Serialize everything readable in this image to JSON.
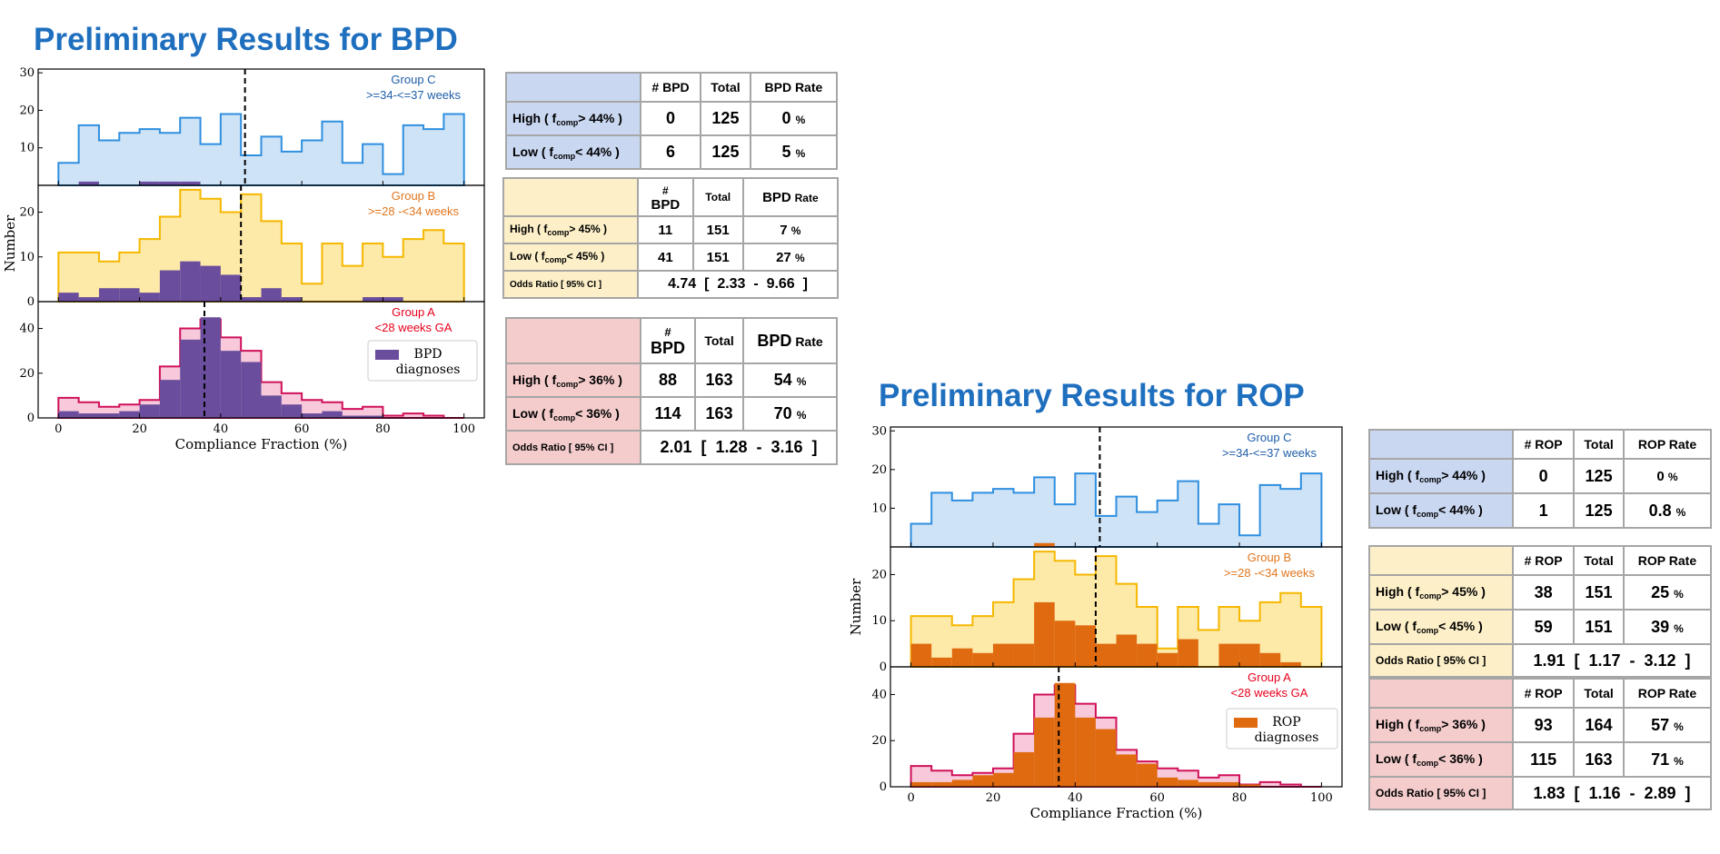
{
  "colors": {
    "title": "#1f6fbf",
    "groupC": {
      "line": "#2f8fdf",
      "fill": "#cfe3f7",
      "text": "#1f5ea8"
    },
    "groupB": {
      "line": "#f5b800",
      "fill": "#fde9a8",
      "text": "#e2761e"
    },
    "groupA": {
      "line": "#d0105a",
      "fill": "#f7c9da",
      "text": "#e8001c"
    },
    "bpd": "#6a4d9c",
    "rop": "#e06a10"
  },
  "bpd": {
    "title": "Preliminary Results for BPD",
    "chart_data": {
      "type": "histogram",
      "xlabel": "Compliance Fraction (%)",
      "ylabel": "Number",
      "xlim": [
        -5,
        105
      ],
      "xticks": [
        0,
        20,
        40,
        60,
        80,
        100
      ],
      "bin_width": 5,
      "bins_start": [
        0,
        5,
        10,
        15,
        20,
        25,
        30,
        35,
        40,
        45,
        50,
        55,
        60,
        65,
        70,
        75,
        80,
        85,
        90,
        95
      ],
      "panels": [
        {
          "group": "Group C",
          "sub": ">=34-<=37 weeks",
          "ylim": [
            0,
            31
          ],
          "yticks": [
            10,
            20,
            30
          ],
          "dashed_x": 46,
          "totals": [
            6,
            16,
            12,
            14,
            15,
            14,
            18,
            11,
            19,
            8,
            13,
            9,
            12,
            17,
            6,
            11,
            3,
            16,
            15,
            19
          ],
          "diagnoses": [
            0,
            1,
            0,
            0,
            1,
            1,
            1,
            0,
            0,
            0,
            0,
            0,
            0,
            0,
            0,
            0,
            0,
            0,
            0,
            0
          ]
        },
        {
          "group": "Group B",
          "sub": ">=28 -<34 weeks",
          "ylim": [
            0,
            26
          ],
          "yticks": [
            0,
            10,
            20
          ],
          "dashed_x": 45,
          "totals": [
            11,
            11,
            9,
            11,
            14,
            19,
            25,
            23,
            20,
            24,
            18,
            13,
            4,
            13,
            8,
            13,
            10,
            14,
            16,
            13
          ],
          "diagnoses": [
            2,
            1,
            3,
            3,
            2,
            7,
            9,
            8,
            6,
            1,
            3,
            1,
            0,
            0,
            0,
            1,
            1,
            0,
            0,
            0
          ]
        },
        {
          "group": "Group A",
          "sub": "<28 weeks GA",
          "ylim": [
            0,
            52
          ],
          "yticks": [
            0,
            20,
            40
          ],
          "dashed_x": 36,
          "totals": [
            9,
            7,
            5,
            6,
            8,
            23,
            40,
            44,
            36,
            30,
            16,
            11,
            8,
            7,
            4,
            5,
            1,
            2,
            1,
            0
          ],
          "diagnoses": [
            3,
            2,
            2,
            3,
            6,
            17,
            35,
            45,
            30,
            25,
            10,
            6,
            2,
            3,
            1,
            1,
            0,
            0,
            0,
            0
          ]
        }
      ],
      "legend": [
        "BPD",
        "diagnoses"
      ]
    },
    "tables": [
      {
        "header": [
          "# BPD",
          "Total",
          "BPD Rate"
        ],
        "rows": [
          {
            "label": "High ( f",
            "op": "> 44%  )",
            "n": "0",
            "total": "125",
            "rate": "0",
            "pct": "%"
          },
          {
            "label": "Low ( f",
            "op": "< 44%  )",
            "n": "6",
            "total": "125",
            "rate": "5",
            "pct": "%"
          }
        ]
      },
      {
        "header": [
          "#",
          "BPD",
          "Total",
          "BPD",
          "Rate"
        ],
        "rows": [
          {
            "label": "High ( f",
            "op": "> 45% )",
            "n": "11",
            "total": "151",
            "rate": "7",
            "pct": "%"
          },
          {
            "label": "Low ( f",
            "op": "< 45% )",
            "n": "41",
            "total": "151",
            "rate": "27",
            "pct": "%"
          }
        ],
        "odds": {
          "label": "Odds Ratio [ 95% CI ]",
          "value": "4.74  [  2.33  -  9.66  ]"
        }
      },
      {
        "header": [
          "#",
          "BPD",
          "Total",
          "BPD",
          "Rate"
        ],
        "rows": [
          {
            "label": "High ( f",
            "op": "> 36% )",
            "n": "88",
            "total": "163",
            "rate": "54",
            "pct": "%"
          },
          {
            "label": "Low ( f",
            "op": "< 36% )",
            "n": "114",
            "total": "163",
            "rate": "70",
            "pct": "%"
          }
        ],
        "odds": {
          "label": "Odds Ratio [ 95% CI ]",
          "value": "2.01  [  1.28  -  3.16  ]"
        }
      }
    ]
  },
  "rop": {
    "title": "Preliminary Results for ROP",
    "chart_data": {
      "type": "histogram",
      "xlabel": "Compliance Fraction (%)",
      "ylabel": "Number",
      "xlim": [
        -5,
        105
      ],
      "xticks": [
        0,
        20,
        40,
        60,
        80,
        100
      ],
      "bin_width": 5,
      "bins_start": [
        0,
        5,
        10,
        15,
        20,
        25,
        30,
        35,
        40,
        45,
        50,
        55,
        60,
        65,
        70,
        75,
        80,
        85,
        90,
        95
      ],
      "panels": [
        {
          "group": "Group C",
          "sub": ">=34-<=37 weeks",
          "ylim": [
            0,
            31
          ],
          "yticks": [
            10,
            20,
            30
          ],
          "dashed_x": 46,
          "totals": [
            6,
            14,
            12,
            14,
            15,
            14,
            18,
            11,
            19,
            8,
            13,
            9,
            12,
            17,
            6,
            11,
            3,
            16,
            15,
            19
          ],
          "diagnoses": [
            0,
            0,
            0,
            0,
            0,
            0,
            1,
            0,
            0,
            0,
            0,
            0,
            0,
            0,
            0,
            0,
            0,
            0,
            0,
            0
          ]
        },
        {
          "group": "Group B",
          "sub": ">=28 -<34 weeks",
          "ylim": [
            0,
            26
          ],
          "yticks": [
            0,
            10,
            20
          ],
          "dashed_x": 45,
          "totals": [
            11,
            11,
            9,
            11,
            14,
            19,
            25,
            23,
            20,
            24,
            18,
            13,
            4,
            13,
            8,
            13,
            10,
            14,
            16,
            13
          ],
          "diagnoses": [
            5,
            2,
            4,
            3,
            5,
            5,
            14,
            10,
            9,
            5,
            7,
            5,
            3,
            6,
            0,
            5,
            5,
            3,
            1,
            0
          ]
        },
        {
          "group": "Group A",
          "sub": "<28 weeks GA",
          "ylim": [
            0,
            52
          ],
          "yticks": [
            0,
            20,
            40
          ],
          "dashed_x": 36,
          "totals": [
            9,
            7,
            5,
            6,
            8,
            23,
            40,
            44,
            36,
            30,
            16,
            11,
            8,
            7,
            4,
            5,
            1,
            2,
            1,
            0
          ],
          "diagnoses": [
            2,
            2,
            3,
            5,
            6,
            15,
            30,
            45,
            30,
            25,
            14,
            10,
            4,
            3,
            2,
            2,
            1,
            0,
            0,
            0
          ]
        }
      ],
      "legend": [
        "ROP",
        "diagnoses"
      ]
    },
    "tables": [
      {
        "header": [
          "# ROP",
          "Total",
          "ROP Rate"
        ],
        "rows": [
          {
            "label": "High ( f",
            "op": "> 44%  )",
            "n": "0",
            "total": "125",
            "rate": "0",
            "pct": "%"
          },
          {
            "label": "Low ( f",
            "op": "< 44%  )",
            "n": "1",
            "total": "125",
            "rate": "0.8",
            "pct": "%"
          }
        ]
      },
      {
        "header": [
          "# ROP",
          "Total",
          "ROP Rate"
        ],
        "rows": [
          {
            "label": "High ( f",
            "op": "> 45%  )",
            "n": "38",
            "total": "151",
            "rate": "25",
            "pct": "%"
          },
          {
            "label": "Low ( f",
            "op": "< 45%  )",
            "n": "59",
            "total": "151",
            "rate": "39",
            "pct": "%"
          }
        ],
        "odds": {
          "label": "Odds Ratio [ 95% CI ]",
          "value": "1.91  [  1.17  -  3.12  ]"
        }
      },
      {
        "header": [
          "# ROP",
          "Total",
          "ROP Rate"
        ],
        "rows": [
          {
            "label": "High ( f",
            "op": "> 36%  )",
            "n": "93",
            "total": "164",
            "rate": "57",
            "pct": "%"
          },
          {
            "label": "Low ( f",
            "op": "< 36%  )",
            "n": "115",
            "total": "163",
            "rate": "71",
            "pct": "%"
          }
        ],
        "odds": {
          "label": "Odds Ratio [ 95% CI ]",
          "value": "1.83  [  1.16  -  2.89  ]"
        }
      }
    ]
  },
  "sub_comp": "comp"
}
